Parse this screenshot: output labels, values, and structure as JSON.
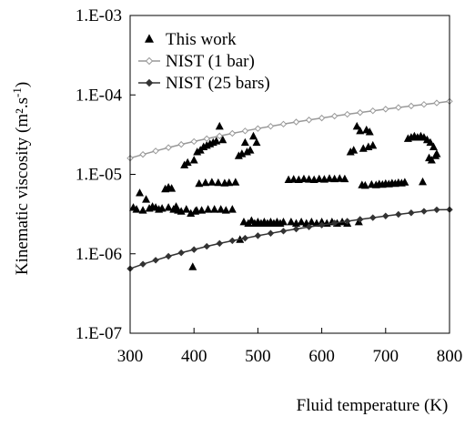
{
  "chart_data": {
    "type": "scatter",
    "xlabel": "Fluid temperature (K)",
    "ylabel_main": "Kinematic viscosity (m²",
    "ylabel_dot": ".s",
    "ylabel_exp": "-1",
    "ylabel_close": ")",
    "xlim": [
      300,
      800
    ],
    "ylim": [
      1e-07,
      0.001
    ],
    "yscale": "log",
    "grid": false,
    "legend_position": "top-left",
    "x_ticks": [
      "300",
      "400",
      "500",
      "600",
      "700",
      "800"
    ],
    "y_ticks": [
      "1.E-07",
      "1.E-06",
      "1.E-05",
      "1.E-04",
      "1.E-03"
    ],
    "series": [
      {
        "name": "This work",
        "marker": "triangle",
        "color": "#000000",
        "points": [
          [
            305,
            3.8e-06
          ],
          [
            310,
            3.6e-06
          ],
          [
            315,
            5.8e-06
          ],
          [
            320,
            3.5e-06
          ],
          [
            325,
            4.8e-06
          ],
          [
            330,
            3.7e-06
          ],
          [
            335,
            3.9e-06
          ],
          [
            340,
            3.8e-06
          ],
          [
            345,
            3.6e-06
          ],
          [
            350,
            3.7e-06
          ],
          [
            355,
            6.5e-06
          ],
          [
            360,
            6.8e-06
          ],
          [
            365,
            6.6e-06
          ],
          [
            360,
            3.8e-06
          ],
          [
            368,
            3.6e-06
          ],
          [
            372,
            3.9e-06
          ],
          [
            375,
            3.5e-06
          ],
          [
            380,
            3.4e-06
          ],
          [
            385,
            1.3e-05
          ],
          [
            388,
            3.6e-06
          ],
          [
            390,
            1.4e-05
          ],
          [
            395,
            3.2e-06
          ],
          [
            398,
            6.8e-07
          ],
          [
            400,
            1.5e-05
          ],
          [
            402,
            3.4e-06
          ],
          [
            404,
            3.5e-06
          ],
          [
            405,
            1.9e-05
          ],
          [
            408,
            7.6e-06
          ],
          [
            410,
            2e-05
          ],
          [
            412,
            3.5e-06
          ],
          [
            415,
            2.2e-05
          ],
          [
            418,
            7.8e-06
          ],
          [
            420,
            2.3e-05
          ],
          [
            422,
            3.6e-06
          ],
          [
            425,
            2.4e-05
          ],
          [
            428,
            7.9e-06
          ],
          [
            430,
            2.5e-05
          ],
          [
            432,
            3.6e-06
          ],
          [
            435,
            2.6e-05
          ],
          [
            438,
            7.8e-06
          ],
          [
            440,
            4e-05
          ],
          [
            442,
            3.6e-06
          ],
          [
            445,
            2.7e-05
          ],
          [
            448,
            7.7e-06
          ],
          [
            450,
            3.5e-06
          ],
          [
            455,
            7.8e-06
          ],
          [
            460,
            3.6e-06
          ],
          [
            465,
            7.9e-06
          ],
          [
            470,
            1.7e-05
          ],
          [
            472,
            1.5e-06
          ],
          [
            475,
            1.8e-05
          ],
          [
            478,
            2.5e-06
          ],
          [
            480,
            2.5e-05
          ],
          [
            483,
            1.9e-05
          ],
          [
            485,
            2.4e-06
          ],
          [
            488,
            2e-05
          ],
          [
            490,
            2.6e-06
          ],
          [
            493,
            3e-05
          ],
          [
            495,
            2.4e-06
          ],
          [
            498,
            2.5e-05
          ],
          [
            500,
            2.5e-06
          ],
          [
            505,
            2.4e-06
          ],
          [
            510,
            2.5e-06
          ],
          [
            515,
            2.4e-06
          ],
          [
            520,
            2.5e-06
          ],
          [
            525,
            2.4e-06
          ],
          [
            530,
            2.5e-06
          ],
          [
            535,
            2.4e-06
          ],
          [
            540,
            2.5e-06
          ],
          [
            548,
            8.5e-06
          ],
          [
            552,
            2.5e-06
          ],
          [
            556,
            8.6e-06
          ],
          [
            560,
            2.4e-06
          ],
          [
            564,
            8.5e-06
          ],
          [
            568,
            2.5e-06
          ],
          [
            572,
            8.7e-06
          ],
          [
            576,
            2.4e-06
          ],
          [
            580,
            8.6e-06
          ],
          [
            584,
            2.5e-06
          ],
          [
            588,
            8.5e-06
          ],
          [
            592,
            2.4e-06
          ],
          [
            596,
            8.7e-06
          ],
          [
            600,
            2.5e-06
          ],
          [
            604,
            8.6e-06
          ],
          [
            608,
            2.4e-06
          ],
          [
            612,
            8.8e-06
          ],
          [
            616,
            2.5e-06
          ],
          [
            620,
            8.7e-06
          ],
          [
            624,
            2.4e-06
          ],
          [
            628,
            8.8e-06
          ],
          [
            632,
            2.5e-06
          ],
          [
            636,
            8.7e-06
          ],
          [
            640,
            2.4e-06
          ],
          [
            645,
            1.9e-05
          ],
          [
            650,
            2e-05
          ],
          [
            655,
            4e-05
          ],
          [
            658,
            2.5e-06
          ],
          [
            660,
            3.5e-05
          ],
          [
            663,
            7.3e-06
          ],
          [
            665,
            2.1e-05
          ],
          [
            668,
            7.2e-06
          ],
          [
            670,
            3.6e-05
          ],
          [
            673,
            2.2e-05
          ],
          [
            675,
            3.4e-05
          ],
          [
            678,
            7.4e-06
          ],
          [
            680,
            2.3e-05
          ],
          [
            685,
            7.3e-06
          ],
          [
            690,
            7.5e-06
          ],
          [
            695,
            7.4e-06
          ],
          [
            700,
            7.6e-06
          ],
          [
            705,
            7.5e-06
          ],
          [
            710,
            7.7e-06
          ],
          [
            715,
            7.6e-06
          ],
          [
            720,
            7.8e-06
          ],
          [
            725,
            7.7e-06
          ],
          [
            730,
            7.9e-06
          ],
          [
            735,
            2.8e-05
          ],
          [
            740,
            2.9e-05
          ],
          [
            745,
            3e-05
          ],
          [
            750,
            2.9e-05
          ],
          [
            755,
            3e-05
          ],
          [
            758,
            8e-06
          ],
          [
            760,
            2.9e-05
          ],
          [
            765,
            2.7e-05
          ],
          [
            768,
            1.6e-05
          ],
          [
            770,
            2.5e-05
          ],
          [
            772,
            1.5e-05
          ],
          [
            775,
            2.2e-05
          ],
          [
            778,
            1.7e-05
          ],
          [
            780,
            1.8e-05
          ]
        ]
      },
      {
        "name": "NIST (1 bar)",
        "marker": "diamond-open",
        "color": "#999999",
        "line": true,
        "points": [
          [
            300,
            1.6e-05
          ],
          [
            320,
            1.78e-05
          ],
          [
            340,
            1.97e-05
          ],
          [
            360,
            2.17e-05
          ],
          [
            380,
            2.38e-05
          ],
          [
            400,
            2.59e-05
          ],
          [
            420,
            2.81e-05
          ],
          [
            440,
            3.04e-05
          ],
          [
            460,
            3.28e-05
          ],
          [
            480,
            3.52e-05
          ],
          [
            500,
            3.77e-05
          ],
          [
            520,
            4.03e-05
          ],
          [
            540,
            4.29e-05
          ],
          [
            560,
            4.56e-05
          ],
          [
            580,
            4.84e-05
          ],
          [
            600,
            5.12e-05
          ],
          [
            620,
            5.41e-05
          ],
          [
            640,
            5.7e-05
          ],
          [
            660,
            6e-05
          ],
          [
            680,
            6.31e-05
          ],
          [
            700,
            6.62e-05
          ],
          [
            720,
            6.94e-05
          ],
          [
            740,
            7.26e-05
          ],
          [
            760,
            7.59e-05
          ],
          [
            780,
            7.92e-05
          ],
          [
            800,
            8.3e-05
          ]
        ]
      },
      {
        "name": "NIST (25 bars)",
        "marker": "diamond-filled",
        "color": "#333333",
        "line": true,
        "points": [
          [
            300,
            6.5e-07
          ],
          [
            320,
            7.4e-07
          ],
          [
            340,
            8.3e-07
          ],
          [
            360,
            9.3e-07
          ],
          [
            380,
            1.03e-06
          ],
          [
            400,
            1.13e-06
          ],
          [
            420,
            1.24e-06
          ],
          [
            440,
            1.35e-06
          ],
          [
            460,
            1.46e-06
          ],
          [
            480,
            1.57e-06
          ],
          [
            500,
            1.69e-06
          ],
          [
            520,
            1.81e-06
          ],
          [
            540,
            1.93e-06
          ],
          [
            560,
            2.05e-06
          ],
          [
            580,
            2.18e-06
          ],
          [
            600,
            2.3e-06
          ],
          [
            620,
            2.44e-06
          ],
          [
            640,
            2.57e-06
          ],
          [
            660,
            2.71e-06
          ],
          [
            680,
            2.85e-06
          ],
          [
            700,
            2.99e-06
          ],
          [
            720,
            3.13e-06
          ],
          [
            740,
            3.28e-06
          ],
          [
            760,
            3.43e-06
          ],
          [
            780,
            3.58e-06
          ],
          [
            800,
            3.6e-06
          ]
        ]
      }
    ]
  }
}
